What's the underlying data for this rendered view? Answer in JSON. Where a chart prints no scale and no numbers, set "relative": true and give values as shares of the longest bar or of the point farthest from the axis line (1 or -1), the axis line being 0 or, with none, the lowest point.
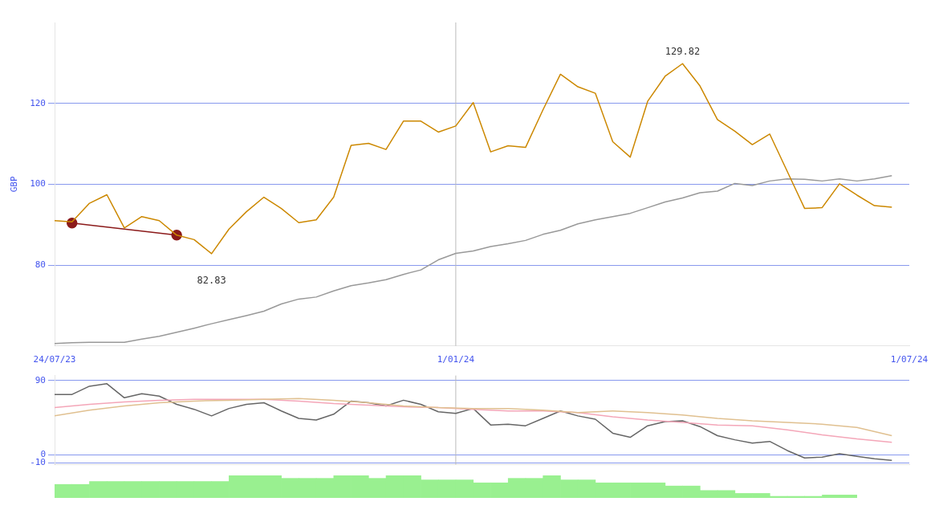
{
  "chart_data": [
    {
      "type": "line",
      "ylabel": "GBP",
      "x": [
        "2023-07-24",
        "2023-07-31",
        "2023-08-07",
        "2023-08-14",
        "2023-08-21",
        "2023-08-28",
        "2023-09-04",
        "2023-09-11",
        "2023-09-18",
        "2023-09-25",
        "2023-10-02",
        "2023-10-09",
        "2023-10-16",
        "2023-10-23",
        "2023-10-30",
        "2023-11-06",
        "2023-11-13",
        "2023-11-20",
        "2023-11-27",
        "2023-12-04",
        "2023-12-11",
        "2023-12-18",
        "2023-12-25",
        "2024-01-01",
        "2024-01-08",
        "2024-01-15",
        "2024-01-22",
        "2024-01-29",
        "2024-02-05",
        "2024-02-12",
        "2024-02-19",
        "2024-02-26",
        "2024-03-04",
        "2024-03-11",
        "2024-03-18",
        "2024-03-25",
        "2024-04-01",
        "2024-04-08",
        "2024-04-15",
        "2024-04-22",
        "2024-04-29",
        "2024-05-06",
        "2024-05-13",
        "2024-05-20",
        "2024-05-27",
        "2024-06-03",
        "2024-06-10",
        "2024-06-17",
        "2024-06-24"
      ],
      "series": [
        {
          "color": "#cc8800",
          "values": [
            91.0,
            90.7,
            95.3,
            97.4,
            89.2,
            92.0,
            91.0,
            87.4,
            86.3,
            82.83,
            88.9,
            93.2,
            96.8,
            94.0,
            90.5,
            91.2,
            96.8,
            109.6,
            110.1,
            108.6,
            115.6,
            115.6,
            112.9,
            114.4,
            120.2,
            108.0,
            109.5,
            109.1,
            118.4,
            127.2,
            124.1,
            122.5,
            110.5,
            106.7,
            120.5,
            126.7,
            129.82,
            124.3,
            116.0,
            113.1,
            109.8,
            112.4,
            103.2,
            94.0,
            94.2,
            100.1,
            97.3,
            94.7,
            94.3
          ]
        },
        {
          "color": "#999999",
          "values": [
            60.6,
            60.8,
            60.9,
            60.9,
            60.9,
            61.7,
            62.4,
            63.4,
            64.4,
            65.5,
            66.5,
            67.5,
            68.6,
            70.4,
            71.6,
            72.1,
            73.6,
            74.9,
            75.6,
            76.4,
            77.7,
            78.8,
            81.3,
            82.9,
            83.5,
            84.6,
            85.3,
            86.1,
            87.6,
            88.6,
            90.2,
            91.2,
            92.0,
            92.8,
            94.2,
            95.6,
            96.6,
            97.9,
            98.3,
            100.2,
            99.7,
            100.8,
            101.3,
            101.2,
            100.8,
            101.3,
            100.8,
            101.3,
            102.1
          ]
        },
        {
          "type": "line",
          "color": "#8b1a1a",
          "marker": "circle",
          "x": [
            "2023-07-31",
            "2023-09-11"
          ],
          "values": [
            90.4,
            87.4
          ]
        }
      ],
      "xlim": [
        "2023-07-24",
        "2024-07-01"
      ],
      "xticks": [
        {
          "value": "2023-07-24",
          "label": "24/07/23"
        },
        {
          "value": "2024-01-01",
          "label": "1/01/24"
        },
        {
          "value": "2024-07-01",
          "label": "1/07/24"
        }
      ],
      "ylim": [
        60,
        140
      ],
      "yticks": [
        80,
        100,
        120
      ],
      "grid": "y",
      "ref_lines": [
        {
          "axis": "x",
          "value": "2024-01-01",
          "color": "#bbbbbb"
        }
      ],
      "annotations": [
        {
          "text": "129.82",
          "x": "2024-04-01",
          "y": 129.82
        },
        {
          "text": "82.83",
          "x": "2023-09-25",
          "y": 82.83
        }
      ]
    },
    {
      "type": "line",
      "x": [
        "2023-07-24",
        "2023-07-31",
        "2023-08-07",
        "2023-08-14",
        "2023-08-21",
        "2023-08-28",
        "2023-09-04",
        "2023-09-11",
        "2023-09-18",
        "2023-09-25",
        "2023-10-02",
        "2023-10-09",
        "2023-10-16",
        "2023-10-23",
        "2023-10-30",
        "2023-11-06",
        "2023-11-13",
        "2023-11-20",
        "2023-11-27",
        "2023-12-04",
        "2023-12-11",
        "2023-12-18",
        "2023-12-25",
        "2024-01-01",
        "2024-01-08",
        "2024-01-15",
        "2024-01-22",
        "2024-01-29",
        "2024-02-05",
        "2024-02-12",
        "2024-02-19",
        "2024-02-26",
        "2024-03-04",
        "2024-03-11",
        "2024-03-18",
        "2024-03-25",
        "2024-04-01",
        "2024-04-08",
        "2024-04-15",
        "2024-04-22",
        "2024-04-29",
        "2024-05-06",
        "2024-05-13",
        "2024-05-20",
        "2024-05-27",
        "2024-06-03",
        "2024-06-10",
        "2024-06-17",
        "2024-06-24"
      ],
      "series": [
        {
          "color": "#e0c090",
          "x": [
            "2023-07-24",
            "2023-08-07",
            "2023-08-21",
            "2023-09-04",
            "2023-09-18",
            "2023-10-02",
            "2023-10-16",
            "2023-10-30",
            "2023-11-13",
            "2023-11-27",
            "2023-12-11",
            "2023-12-25",
            "2024-01-08",
            "2024-01-22",
            "2024-02-05",
            "2024-02-19",
            "2024-03-04",
            "2024-03-18",
            "2024-04-01",
            "2024-04-15",
            "2024-04-29",
            "2024-05-13",
            "2024-05-27",
            "2024-06-10",
            "2024-06-24"
          ],
          "values": [
            47,
            54,
            59,
            63,
            65,
            66,
            67,
            68,
            66,
            63,
            59,
            57,
            56,
            56,
            54,
            51,
            53,
            51,
            48,
            44,
            41,
            39,
            37,
            33,
            23
          ]
        },
        {
          "color": "#f4a6b8",
          "x": [
            "2023-07-24",
            "2023-08-07",
            "2023-08-21",
            "2023-09-04",
            "2023-09-18",
            "2023-10-02",
            "2023-10-16",
            "2023-10-30",
            "2023-11-13",
            "2023-11-27",
            "2023-12-11",
            "2023-12-25",
            "2024-01-08",
            "2024-01-22",
            "2024-02-05",
            "2024-02-19",
            "2024-03-04",
            "2024-03-18",
            "2024-04-01",
            "2024-04-15",
            "2024-04-29",
            "2024-05-13",
            "2024-05-27",
            "2024-06-10",
            "2024-06-24"
          ],
          "values": [
            57,
            61,
            64,
            66,
            67,
            67,
            67,
            65,
            62,
            60,
            58,
            57,
            55,
            53,
            53,
            51,
            46,
            42,
            39,
            36,
            35,
            30,
            24,
            19,
            15
          ]
        },
        {
          "color": "#666666",
          "values": [
            73,
            73,
            83,
            86,
            69,
            74,
            71,
            61,
            55,
            47,
            56,
            61,
            63,
            53,
            44,
            42,
            49,
            65,
            63,
            59,
            66,
            61,
            52,
            50,
            56,
            36,
            37,
            35,
            44,
            53,
            47,
            43,
            26,
            21,
            35,
            40,
            41,
            34,
            23,
            18,
            14,
            16,
            5,
            -4,
            -3,
            1,
            -2,
            -5,
            -7
          ]
        }
      ],
      "xlim": [
        "2023-07-24",
        "2024-07-01"
      ],
      "xticks": [
        {
          "value": "2023-07-24",
          "label": null
        },
        {
          "value": "2024-01-01",
          "label": null
        },
        {
          "value": "2024-07-01",
          "label": null
        }
      ],
      "ylim": [
        -12,
        96
      ],
      "yticks": [
        -10,
        0,
        90
      ],
      "grid": "y",
      "tick_labels": "y",
      "ref_lines": [
        {
          "axis": "x",
          "value": "2024-01-01",
          "color": "#bbbbbb"
        }
      ]
    },
    {
      "type": "bar",
      "relative": true,
      "categories": [
        null,
        null,
        null,
        null,
        null,
        null,
        null,
        null,
        null,
        null,
        null,
        null,
        null,
        null,
        null,
        null,
        null,
        null,
        null,
        null,
        null,
        null,
        null,
        null,
        null,
        null,
        null,
        null,
        null,
        null,
        null,
        null,
        null,
        null,
        null,
        null,
        null,
        null,
        null,
        null,
        null,
        null,
        null,
        null,
        null,
        null
      ],
      "color": "#99f090",
      "values": [
        0.6,
        0.6,
        0.73,
        0.73,
        0.73,
        0.73,
        0.73,
        0.73,
        0.73,
        0.73,
        1,
        1,
        1,
        0.87,
        0.87,
        0.87,
        1,
        1,
        0.87,
        1,
        1,
        0.8,
        0.8,
        0.8,
        0.67,
        0.67,
        0.87,
        0.87,
        1,
        0.8,
        0.8,
        0.67,
        0.67,
        0.67,
        0.67,
        0.53,
        0.53,
        0.33,
        0.33,
        0.2,
        0.2,
        0.07,
        0.07,
        0.07,
        0.13,
        0.13
      ],
      "tick_labels": false
    }
  ]
}
